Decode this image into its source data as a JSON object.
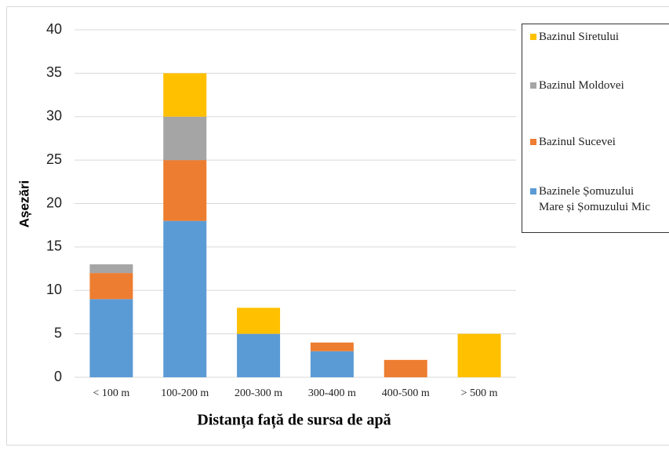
{
  "chart_data": {
    "type": "stacked_bar",
    "x_label": "Distanța față de sursa de apă",
    "y_label": "Așezări",
    "categories": [
      "< 100 m",
      "100-200 m",
      "200-300 m",
      "300-400 m",
      "400-500 m",
      "> 500 m"
    ],
    "series": [
      {
        "name": "Bazinele Șomuzului Mare și Șomuzului Mic",
        "color": "#5b9bd5",
        "values": [
          9,
          18,
          5,
          3,
          0,
          0
        ]
      },
      {
        "name": "Bazinul Sucevei",
        "color": "#ed7d31",
        "values": [
          3,
          7,
          0,
          1,
          2,
          0
        ]
      },
      {
        "name": "Bazinul Moldovei",
        "color": "#a5a5a5",
        "values": [
          1,
          5,
          0,
          0,
          0,
          0
        ]
      },
      {
        "name": "Bazinul Siretului",
        "color": "#ffc000",
        "values": [
          0,
          5,
          3,
          0,
          0,
          5
        ]
      }
    ],
    "ylim": [
      0,
      40
    ],
    "yticks": [
      0,
      5,
      10,
      15,
      20,
      25,
      30,
      35,
      40
    ],
    "grid": true,
    "legend": "right"
  }
}
